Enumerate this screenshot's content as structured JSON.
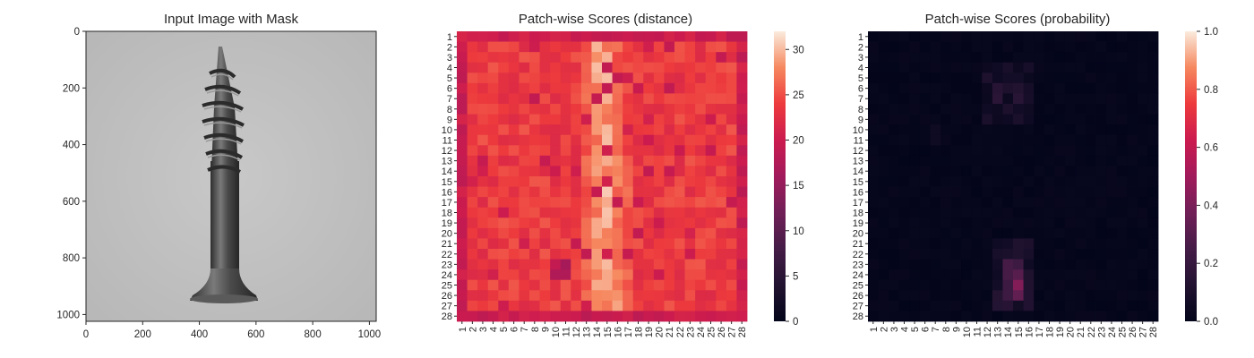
{
  "chart_data": [
    {
      "type": "image",
      "title": "Input Image with Mask",
      "xticks": [
        0,
        200,
        400,
        600,
        800,
        1000
      ],
      "yticks": [
        0,
        200,
        400,
        600,
        800,
        1000
      ],
      "xlim": [
        0,
        1024
      ],
      "ylim": [
        1024,
        0
      ],
      "image": "grayscale photo of a metal wood screw, tip up, flat countersunk head at bottom, on a light gray background"
    },
    {
      "type": "heatmap",
      "title": "Patch-wise Scores (distance)",
      "rows": 28,
      "cols": 28,
      "colorbar": {
        "min": 0,
        "max": 32,
        "ticks": [
          0,
          5,
          10,
          15,
          20,
          25,
          30
        ]
      },
      "colormap": "rocket",
      "description": "Values mostly 20-26; a bright vertical band (about 27-32) runs down columns 13-16 following the screw; darker cells (about 15-19) near edges and around rows 23-24 col 10"
    },
    {
      "type": "heatmap",
      "title": "Patch-wise Scores (probability)",
      "rows": 28,
      "cols": 28,
      "colorbar": {
        "min": 0.0,
        "max": 1.0,
        "ticks": [
          "0.0",
          "0.2",
          "0.4",
          "0.6",
          "0.8",
          "1.0"
        ]
      },
      "colormap": "rocket",
      "description": "Nearly all cells near 0.0; faint values 0.05-0.15 around rows 4-9 cols 13-16; highest about 0.3-0.45 at rows 23-26 cols 14-16"
    }
  ]
}
